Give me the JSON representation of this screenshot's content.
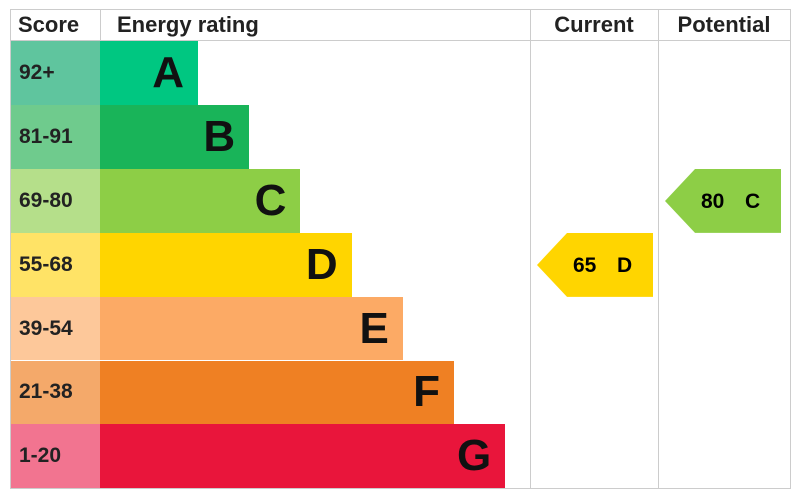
{
  "header": {
    "score": "Score",
    "rating": "Energy rating",
    "current": "Current",
    "potential": "Potential"
  },
  "bands": [
    {
      "range": "92+",
      "letter": "A",
      "color": "#00c781",
      "tint": "#5fc59e"
    },
    {
      "range": "81-91",
      "letter": "B",
      "color": "#19b459",
      "tint": "#6fcb8d"
    },
    {
      "range": "69-80",
      "letter": "C",
      "color": "#8dce46",
      "tint": "#b5df8a"
    },
    {
      "range": "55-68",
      "letter": "D",
      "color": "#ffd500",
      "tint": "#ffe366"
    },
    {
      "range": "39-54",
      "letter": "E",
      "color": "#fcaa65",
      "tint": "#fdc89a"
    },
    {
      "range": "21-38",
      "letter": "F",
      "color": "#ef8023",
      "tint": "#f4a96a"
    },
    {
      "range": "1-20",
      "letter": "G",
      "color": "#e9153b",
      "tint": "#f27490"
    }
  ],
  "current": {
    "value": 65,
    "rating": "D"
  },
  "potential": {
    "value": 80,
    "rating": "C"
  }
}
